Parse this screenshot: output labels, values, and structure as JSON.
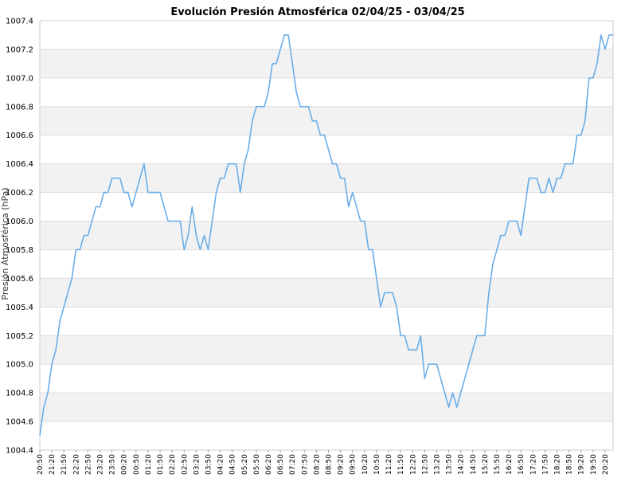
{
  "chart_data": {
    "type": "line",
    "title": "Evolución Presión Atmosférica 02/04/25 - 03/04/25",
    "xlabel": "",
    "ylabel": "Presión Atmosférica (hPa)",
    "ylim": [
      1004.4,
      1007.4
    ],
    "yticks": [
      "1004.4",
      "1004.6",
      "1004.8",
      "1005.0",
      "1005.2",
      "1005.4",
      "1005.6",
      "1005.8",
      "1006.0",
      "1006.2",
      "1006.4",
      "1006.6",
      "1006.8",
      "1007.0",
      "1007.2",
      "1007.4"
    ],
    "xticks": [
      "20:50",
      "21:20",
      "21:50",
      "22:20",
      "22:50",
      "23:20",
      "23:50",
      "00:20",
      "00:50",
      "01:20",
      "01:50",
      "02:20",
      "02:50",
      "03:20",
      "03:50",
      "04:20",
      "04:50",
      "05:20",
      "05:50",
      "06:20",
      "06:50",
      "07:20",
      "07:50",
      "08:20",
      "08:50",
      "09:20",
      "09:50",
      "10:20",
      "10:50",
      "11:20",
      "11:50",
      "12:20",
      "12:50",
      "13:20",
      "13:50",
      "14:20",
      "14:50",
      "15:20",
      "15:50",
      "16:20",
      "16:50",
      "17:20",
      "17:50",
      "18:20",
      "18:50",
      "19:20",
      "19:50",
      "20:20"
    ],
    "grid": true,
    "line_color": "#6aaee8",
    "band_color": "#f2f2f2",
    "series": [
      {
        "values": [
          1004.5,
          1004.7,
          1004.8,
          1005.0,
          1005.1,
          1005.3,
          1005.4,
          1005.5,
          1005.6,
          1005.8,
          1005.8,
          1005.9,
          1005.9,
          1006.0,
          1006.1,
          1006.1,
          1006.2,
          1006.2,
          1006.3,
          1006.3,
          1006.3,
          1006.2,
          1006.2,
          1006.1,
          1006.2,
          1006.3,
          1006.4,
          1006.2,
          1006.2,
          1006.2,
          1006.2,
          1006.1,
          1006.0,
          1006.0,
          1006.0,
          1006.0,
          1005.8,
          1005.9,
          1006.1,
          1005.9,
          1005.8,
          1005.9,
          1005.8,
          1006.0,
          1006.2,
          1006.3,
          1006.3,
          1006.4,
          1006.4,
          1006.4,
          1006.2,
          1006.4,
          1006.5,
          1006.7,
          1006.8,
          1006.8,
          1006.8,
          1006.9,
          1007.1,
          1007.1,
          1007.2,
          1007.3,
          1007.3,
          1007.1,
          1006.9,
          1006.8,
          1006.8,
          1006.8,
          1006.7,
          1006.7,
          1006.6,
          1006.6,
          1006.5,
          1006.4,
          1006.4,
          1006.3,
          1006.3,
          1006.1,
          1006.2,
          1006.1,
          1006.0,
          1006.0,
          1005.8,
          1005.8,
          1005.6,
          1005.4,
          1005.5,
          1005.5,
          1005.5,
          1005.4,
          1005.2,
          1005.2,
          1005.1,
          1005.1,
          1005.1,
          1005.2,
          1004.9,
          1005.0,
          1005.0,
          1005.0,
          1004.9,
          1004.8,
          1004.7,
          1004.8,
          1004.7,
          1004.8,
          1004.9,
          1005.0,
          1005.1,
          1005.2,
          1005.2,
          1005.2,
          1005.5,
          1005.7,
          1005.8,
          1005.9,
          1005.9,
          1006.0,
          1006.0,
          1006.0,
          1005.9,
          1006.1,
          1006.3,
          1006.3,
          1006.3,
          1006.2,
          1006.2,
          1006.3,
          1006.2,
          1006.3,
          1006.3,
          1006.4,
          1006.4,
          1006.4,
          1006.6,
          1006.6,
          1006.7,
          1007.0,
          1007.0,
          1007.1,
          1007.3,
          1007.2,
          1007.3,
          1007.3
        ]
      }
    ]
  }
}
